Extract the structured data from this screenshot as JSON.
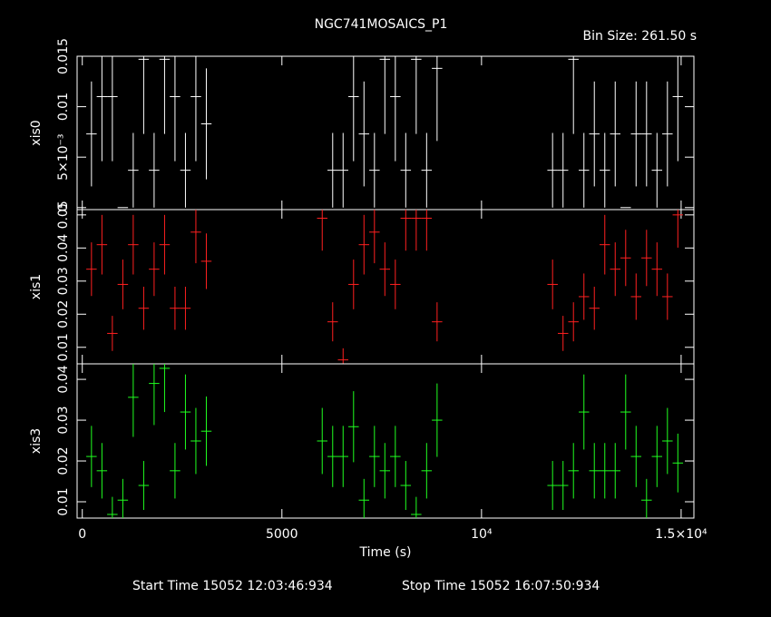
{
  "chart_data": {
    "type": "errorbar",
    "title": "NGC741MOSAICS_P1",
    "bin_size": {
      "value": 261.5,
      "label": "Bin Size: 261.50 s"
    },
    "xlabel": "Time (s)",
    "start_time": "Start Time 15052 12:03:46:934",
    "stop_time": "Stop Time 15052 16:07:50:934",
    "xlim": [
      -130,
      15320
    ],
    "xticks": [
      0,
      5000,
      {
        "value": 10000,
        "label": "10⁴"
      },
      {
        "value": 15000,
        "label": "1.5×10⁴"
      }
    ],
    "x": [
      230,
      492,
      753,
      1015,
      1276,
      1538,
      1799,
      2061,
      2322,
      2584,
      2845,
      3107,
      6010,
      6272,
      6533,
      6795,
      7056,
      7318,
      7579,
      7841,
      8102,
      8364,
      8625,
      8887,
      11780,
      12042,
      12303,
      12565,
      12826,
      13088,
      13349,
      13611,
      13872,
      14134,
      14395,
      14657,
      14918
    ],
    "panels": [
      {
        "ylabel": "xis0",
        "color": "#ffffff",
        "ylim": [
          -0.0002,
          0.015
        ],
        "yticks": [
          0,
          {
            "value": 0.005,
            "label": "5×10⁻³"
          },
          0.01,
          0.015
        ],
        "values": [
          0.0073,
          0.011,
          0.011,
          0,
          0.0037,
          0.0147,
          0.0037,
          0.0147,
          0.011,
          0.0037,
          0.011,
          0.0083,
          null,
          0.0037,
          0.0037,
          0.011,
          0.0073,
          0.0037,
          0.0147,
          0.011,
          0.0037,
          0.0147,
          0.0037,
          0.0138,
          0.0037,
          0.0037,
          0.0147,
          0.0037,
          0.0073,
          0.0037,
          0.0073,
          0,
          0.0073,
          0.0073,
          0.0037,
          0.0073,
          0.011
        ],
        "errors": [
          0.0052,
          0.0064,
          0.0064,
          0,
          0.0037,
          0.0074,
          0.0037,
          0.0074,
          0.0064,
          0.0037,
          0.0064,
          0.0055,
          null,
          0.0037,
          0.0037,
          0.0064,
          0.0052,
          0.0037,
          0.0074,
          0.0064,
          0.0037,
          0.0074,
          0.0037,
          0.0072,
          0.0037,
          0.0037,
          0.0074,
          0.0037,
          0.0052,
          0.0037,
          0.0052,
          0,
          0.0052,
          0.0052,
          0.0037,
          0.0052,
          0.0064
        ]
      },
      {
        "ylabel": "xis1",
        "color": "#ff2020",
        "ylim": [
          0.005,
          0.0516
        ],
        "yticks": [
          0.01,
          0.02,
          0.03,
          0.04,
          0.05
        ],
        "values": [
          0.0336,
          0.041,
          0.0142,
          0.029,
          0.041,
          0.0218,
          0.0336,
          0.041,
          0.0218,
          0.0218,
          0.0448,
          0.036,
          0.049,
          0.0177,
          0.0062,
          0.029,
          0.041,
          0.0448,
          0.0336,
          0.029,
          0.049,
          0.049,
          0.049,
          0.0177,
          0.029,
          0.0142,
          0.0177,
          0.0253,
          0.0218,
          0.041,
          0.0336,
          0.037,
          0.0253,
          0.037,
          0.0336,
          0.0253,
          0.05
        ],
        "errors": [
          0.0081,
          0.009,
          0.0053,
          0.0075,
          0.009,
          0.0065,
          0.0081,
          0.009,
          0.0065,
          0.0065,
          0.0094,
          0.0084,
          0.0098,
          0.0059,
          0.0035,
          0.0075,
          0.009,
          0.0094,
          0.0081,
          0.0075,
          0.0098,
          0.0098,
          0.0098,
          0.0059,
          0.0075,
          0.0053,
          0.0059,
          0.007,
          0.0065,
          0.009,
          0.0081,
          0.0085,
          0.007,
          0.0085,
          0.0081,
          0.007,
          0.0099
        ]
      },
      {
        "ylabel": "xis3",
        "color": "#20ff20",
        "ylim": [
          0.006,
          0.0438
        ],
        "yticks": [
          0.01,
          0.02,
          0.03,
          0.04
        ],
        "values": [
          0.0211,
          0.0176,
          0.0069,
          0.0104,
          0.0356,
          0.014,
          0.039,
          0.0427,
          0.0176,
          0.032,
          0.0249,
          0.0273,
          0.0249,
          0.0211,
          0.0211,
          0.0284,
          0.0104,
          0.0211,
          0.0176,
          0.0211,
          0.014,
          0.0069,
          0.0176,
          0.03,
          0.014,
          0.014,
          0.0176,
          0.032,
          0.0176,
          0.0176,
          0.0176,
          0.032,
          0.0211,
          0.0104,
          0.0211,
          0.0249,
          0.0195
        ],
        "errors": [
          0.0075,
          0.0068,
          0.0043,
          0.0052,
          0.0097,
          0.006,
          0.0102,
          0.0107,
          0.0068,
          0.0092,
          0.0081,
          0.0085,
          0.0081,
          0.0075,
          0.0075,
          0.0087,
          0.0052,
          0.0075,
          0.0068,
          0.0075,
          0.006,
          0.0043,
          0.0068,
          0.009,
          0.006,
          0.006,
          0.0068,
          0.0092,
          0.0068,
          0.0068,
          0.0068,
          0.0092,
          0.0075,
          0.0052,
          0.0075,
          0.0081,
          0.0072
        ]
      }
    ]
  }
}
